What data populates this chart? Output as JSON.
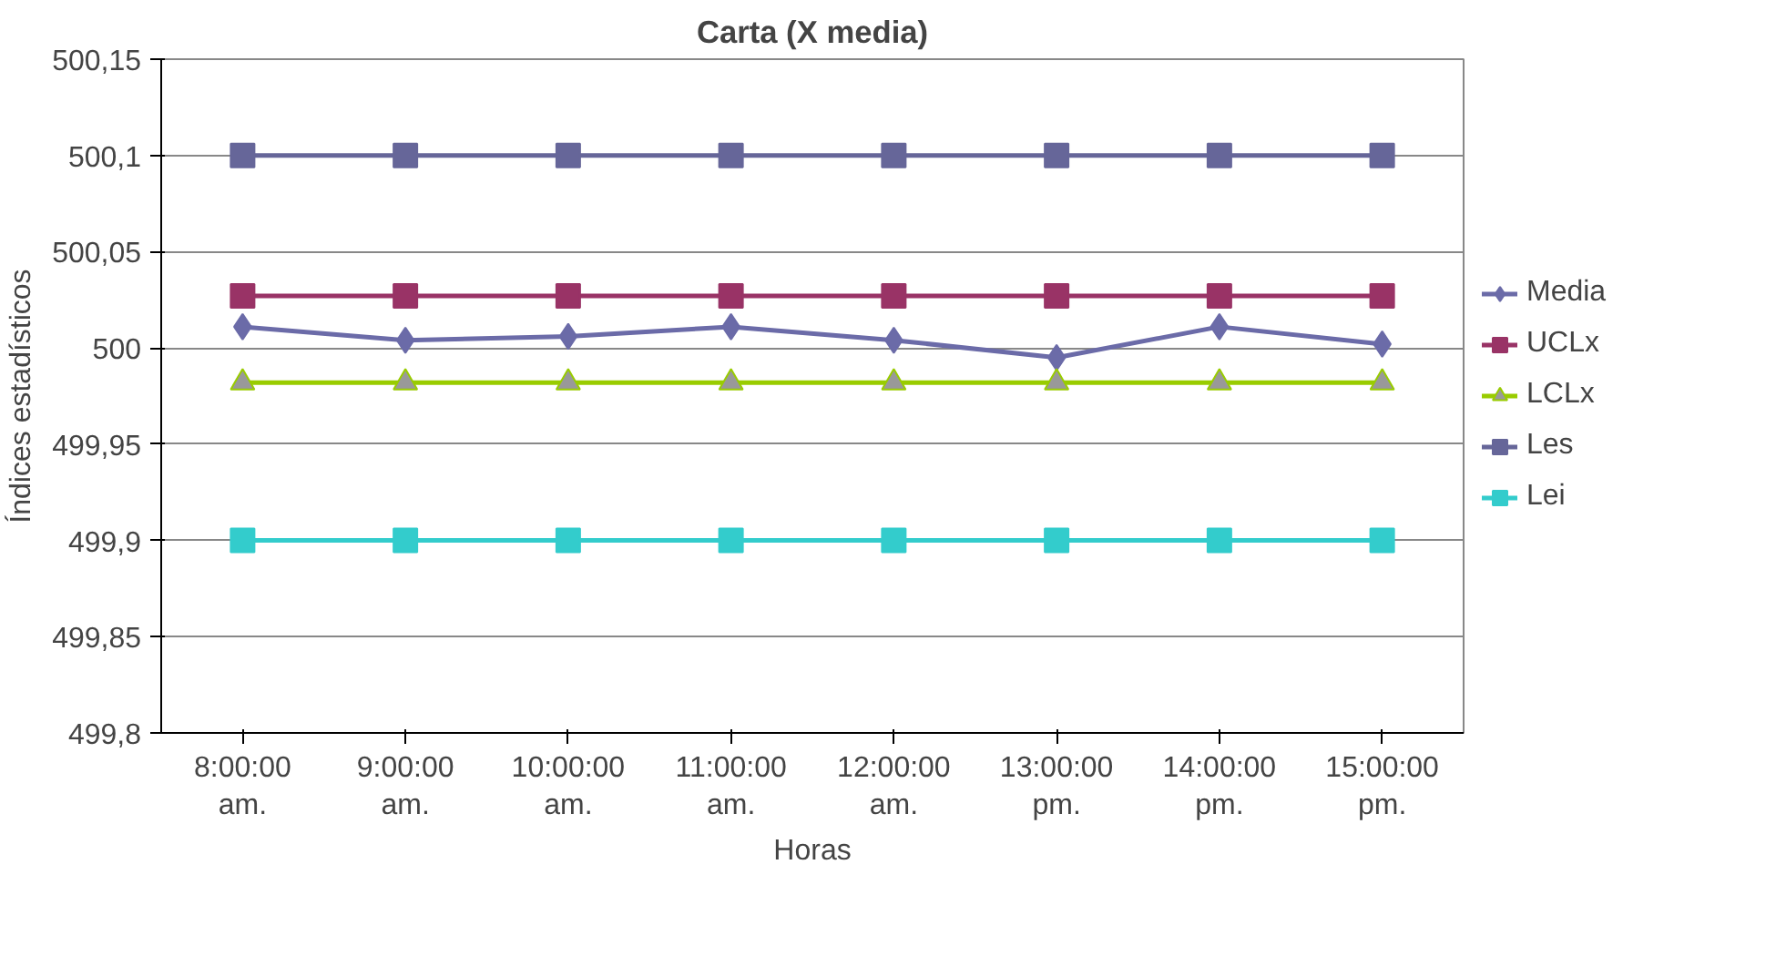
{
  "chart_data": {
    "type": "line",
    "title": "Carta (X media)",
    "xlabel": "Horas",
    "ylabel": "Índices estadísticos",
    "categories": [
      "8:00:00 am.",
      "9:00:00 am.",
      "10:00:00 am.",
      "11:00:00 am.",
      "12:00:00 am.",
      "13:00:00 pm.",
      "14:00:00 pm.",
      "15:00:00 pm."
    ],
    "series": [
      {
        "name": "Media",
        "color": "#6b6ba8",
        "marker": "diamond",
        "values": [
          500.011,
          500.004,
          500.006,
          500.011,
          500.004,
          499.995,
          500.011,
          500.002
        ]
      },
      {
        "name": "UCLx",
        "color": "#993366",
        "marker": "square",
        "values": [
          500.027,
          500.027,
          500.027,
          500.027,
          500.027,
          500.027,
          500.027,
          500.027
        ]
      },
      {
        "name": "LCLx",
        "color": "#99cc00",
        "marker": "triangle",
        "values": [
          499.982,
          499.982,
          499.982,
          499.982,
          499.982,
          499.982,
          499.982,
          499.982
        ]
      },
      {
        "name": "Les",
        "color": "#666699",
        "marker": "square",
        "values": [
          500.1,
          500.1,
          500.1,
          500.1,
          500.1,
          500.1,
          500.1,
          500.1
        ]
      },
      {
        "name": "Lei",
        "color": "#33cccc",
        "marker": "square",
        "values": [
          499.9,
          499.9,
          499.9,
          499.9,
          499.9,
          499.9,
          499.9,
          499.9
        ]
      }
    ],
    "ylim": [
      499.8,
      500.15
    ],
    "yticks": [
      {
        "value": 499.8,
        "label": "499,8"
      },
      {
        "value": 499.85,
        "label": "499,85"
      },
      {
        "value": 499.9,
        "label": "499,9"
      },
      {
        "value": 499.95,
        "label": "499,95"
      },
      {
        "value": 500,
        "label": "500"
      },
      {
        "value": 500.05,
        "label": "500,05"
      },
      {
        "value": 500.1,
        "label": "500,1"
      },
      {
        "value": 500.15,
        "label": "500,15"
      }
    ],
    "grid": "y",
    "legend": "right"
  }
}
